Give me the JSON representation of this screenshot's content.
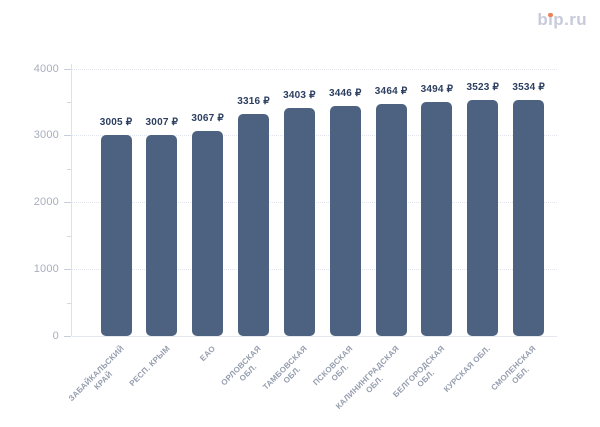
{
  "logo": {
    "text": "bip.ru",
    "text_color": "#c7cbd9",
    "dot_color": "#ef8158"
  },
  "chart_data": {
    "type": "bar",
    "title": "",
    "categories": [
      "ЗАБАЙКАЛЬСКИЙ\nКРАЙ",
      "РЕСП. КРЫМ",
      "ЕАО",
      "ОРЛОВСКАЯ\nОБЛ.",
      "ТАМБОВСКАЯ\nОБЛ.",
      "ПСКОВСКАЯ\nОБЛ.",
      "КАЛИНИНГРАДСКАЯ\nОБЛ.",
      "БЕЛГОРОДСКАЯ\nОБЛ.",
      "КУРСКАЯ ОБЛ.",
      "СМОЛЕНСКАЯ\nОБЛ."
    ],
    "values": [
      3005,
      3007,
      3067,
      3316,
      3403,
      3446,
      3464,
      3494,
      3523,
      3534
    ],
    "value_suffix": " ₽",
    "xlabel": "",
    "ylabel": "",
    "ylim": [
      0,
      4000
    ],
    "yticks": [
      0,
      1000,
      2000,
      3000,
      4000
    ],
    "y_minor_tick_step": 500,
    "grid": "horizontal-dotted",
    "legend": "none",
    "bar_color": "#4d6280",
    "value_label_color": "#2c3f60",
    "x_label_color": "#959dae",
    "y_label_color": "#a7aebc"
  }
}
